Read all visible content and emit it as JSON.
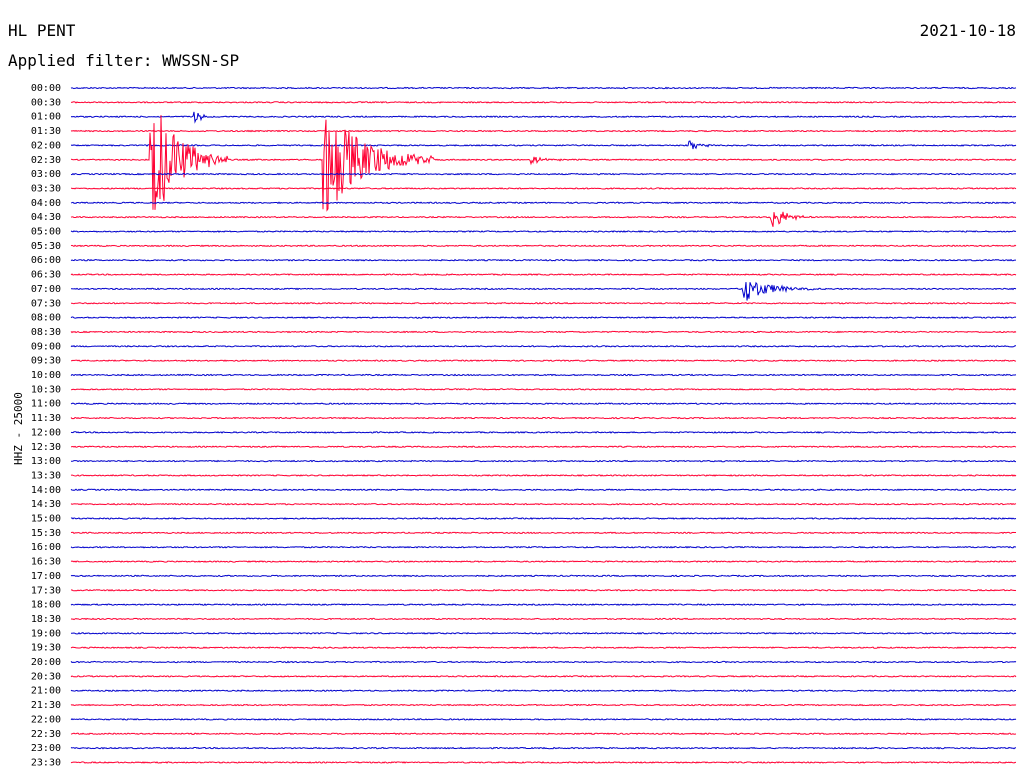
{
  "header": {
    "station": "HL PENT",
    "date": "2021-10-18",
    "filter_label": "Applied filter: WWSSN-SP",
    "channel_scale": "HHZ - 25000"
  },
  "colors": {
    "even_row": "#0000cc",
    "odd_row": "#ff0033",
    "background": "#ffffff"
  },
  "chart_data": {
    "type": "line",
    "title": "",
    "subtitle": "",
    "xlabel": "",
    "ylabel": "HHZ - 25000",
    "grid": false,
    "legend": "none",
    "x_unit": "minutes within trace line",
    "xlim": [
      0,
      30
    ],
    "row_times": [
      "00:00",
      "00:30",
      "01:00",
      "01:30",
      "02:00",
      "02:30",
      "03:00",
      "03:30",
      "04:00",
      "04:30",
      "05:00",
      "05:30",
      "06:00",
      "06:30",
      "07:00",
      "07:30",
      "08:00",
      "08:30",
      "09:00",
      "09:30",
      "10:00",
      "10:30",
      "11:00",
      "11:30",
      "12:00",
      "12:30",
      "13:00",
      "13:30",
      "14:00",
      "14:30",
      "15:00",
      "15:30",
      "16:00",
      "16:30",
      "17:00",
      "17:30",
      "18:00",
      "18:30",
      "19:00",
      "19:30",
      "20:00",
      "20:30",
      "21:00",
      "21:30",
      "22:00",
      "22:30",
      "23:00",
      "23:30"
    ],
    "events": [
      {
        "row": 5.5,
        "start": 2.5,
        "dur": 2.5,
        "amp": 5.0
      },
      {
        "row": 5.5,
        "start": 8.0,
        "dur": 3.5,
        "amp": 4.2
      },
      {
        "row": 9.0,
        "start": 22.2,
        "dur": 1.3,
        "amp": 1.0
      },
      {
        "row": 14.0,
        "start": 21.3,
        "dur": 2.3,
        "amp": 1.0
      },
      {
        "row": 2.0,
        "start": 3.9,
        "dur": 0.6,
        "amp": 0.6
      },
      {
        "row": 4.0,
        "start": 19.6,
        "dur": 1.2,
        "amp": 0.4
      },
      {
        "row": 5.5,
        "start": 14.6,
        "dur": 1.1,
        "amp": 0.3
      }
    ]
  }
}
